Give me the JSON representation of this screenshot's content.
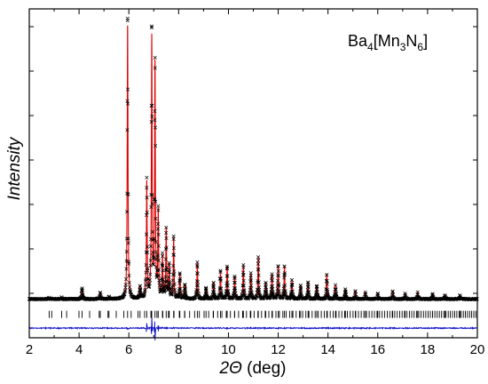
{
  "chart_data": {
    "type": "line",
    "title": "",
    "annotation": {
      "parts": [
        {
          "t": "Ba",
          "sub": false
        },
        {
          "t": "4",
          "sub": true
        },
        {
          "t": "[Mn",
          "sub": false
        },
        {
          "t": "3",
          "sub": true
        },
        {
          "t": "N",
          "sub": false
        },
        {
          "t": "6",
          "sub": true
        },
        {
          "t": "]",
          "sub": false
        }
      ],
      "text": "Ba4[Mn3N6]"
    },
    "xlabel": {
      "italic": "2Θ",
      "plain": " (deg)"
    },
    "ylabel": "Intensity",
    "xlim": [
      2,
      20
    ],
    "ylim": [
      -0.12,
      1.07
    ],
    "xticks": [
      2,
      4,
      6,
      8,
      10,
      12,
      14,
      16,
      18,
      20
    ],
    "y_ticks_labeled": false,
    "grid": false,
    "series": [
      {
        "role": "observed",
        "marker": "x",
        "color": "#000000"
      },
      {
        "role": "calculated",
        "marker": "line",
        "color": "#e00000"
      },
      {
        "role": "reflection positions",
        "marker": "tick",
        "color": "#000000"
      },
      {
        "role": "difference",
        "marker": "line",
        "color": "#1010c8"
      }
    ],
    "baseline": 0.02,
    "reflection_row_y": -0.035,
    "difference_offset": -0.085,
    "peaks": [
      {
        "x": 2.8,
        "h": 0.005
      },
      {
        "x": 3.3,
        "h": 0.006
      },
      {
        "x": 4.12,
        "h": 0.04
      },
      {
        "x": 4.85,
        "h": 0.025
      },
      {
        "x": 5.2,
        "h": 0.008
      },
      {
        "x": 5.95,
        "h": 1.0
      },
      {
        "x": 6.45,
        "h": 0.04
      },
      {
        "x": 6.72,
        "h": 0.42
      },
      {
        "x": 6.92,
        "h": 0.94
      },
      {
        "x": 7.05,
        "h": 0.85
      },
      {
        "x": 7.18,
        "h": 0.31
      },
      {
        "x": 7.35,
        "h": 0.15
      },
      {
        "x": 7.5,
        "h": 0.25
      },
      {
        "x": 7.62,
        "h": 0.12
      },
      {
        "x": 7.8,
        "h": 0.22
      },
      {
        "x": 8.05,
        "h": 0.09
      },
      {
        "x": 8.25,
        "h": 0.05
      },
      {
        "x": 8.75,
        "h": 0.13
      },
      {
        "x": 9.1,
        "h": 0.04
      },
      {
        "x": 9.4,
        "h": 0.06
      },
      {
        "x": 9.68,
        "h": 0.1
      },
      {
        "x": 9.95,
        "h": 0.12
      },
      {
        "x": 10.25,
        "h": 0.08
      },
      {
        "x": 10.6,
        "h": 0.12
      },
      {
        "x": 10.9,
        "h": 0.09
      },
      {
        "x": 11.2,
        "h": 0.15
      },
      {
        "x": 11.5,
        "h": 0.06
      },
      {
        "x": 11.75,
        "h": 0.09
      },
      {
        "x": 12.0,
        "h": 0.12
      },
      {
        "x": 12.25,
        "h": 0.12
      },
      {
        "x": 12.55,
        "h": 0.07
      },
      {
        "x": 12.9,
        "h": 0.05
      },
      {
        "x": 13.2,
        "h": 0.06
      },
      {
        "x": 13.55,
        "h": 0.05
      },
      {
        "x": 13.95,
        "h": 0.09
      },
      {
        "x": 14.3,
        "h": 0.05
      },
      {
        "x": 14.7,
        "h": 0.035
      },
      {
        "x": 15.1,
        "h": 0.03
      },
      {
        "x": 15.5,
        "h": 0.025
      },
      {
        "x": 16.0,
        "h": 0.02
      },
      {
        "x": 16.6,
        "h": 0.03
      },
      {
        "x": 17.1,
        "h": 0.02
      },
      {
        "x": 17.6,
        "h": 0.025
      },
      {
        "x": 18.2,
        "h": 0.02
      },
      {
        "x": 18.7,
        "h": 0.015
      },
      {
        "x": 19.3,
        "h": 0.015
      }
    ],
    "difference_features": [
      {
        "x": 6.72,
        "d": 0.02
      },
      {
        "x": 6.92,
        "d": -0.035
      },
      {
        "x": 7.05,
        "d": -0.04
      },
      {
        "x": 7.18,
        "d": 0.015
      }
    ]
  }
}
